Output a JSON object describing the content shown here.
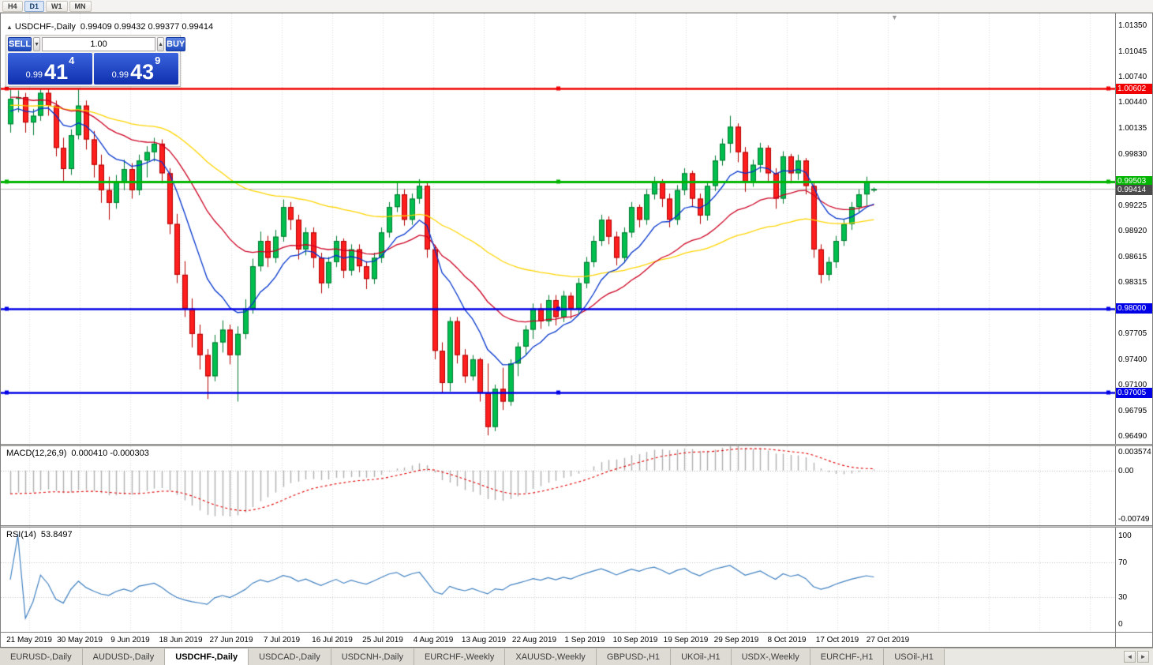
{
  "toolbar": {
    "timeframes": [
      "H4",
      "D1",
      "W1",
      "MN"
    ],
    "active": "D1"
  },
  "chart": {
    "title": "USDCHF-,Daily",
    "ohlc_text": "0.99409 0.99432 0.99377 0.99414"
  },
  "icons": {
    "panel_toggle": "▲",
    "shift_marker": "▼",
    "volume_down": "▼",
    "volume_up": "▲",
    "tab_scroll_left": "◄",
    "tab_scroll_right": "►"
  },
  "one_click": {
    "sell_label": "SELL",
    "buy_label": "BUY",
    "volume": "1.00",
    "sell_price": {
      "prefix": "0.99",
      "big": "41",
      "sup": "4"
    },
    "buy_price": {
      "prefix": "0.99",
      "big": "43",
      "sup": "9"
    }
  },
  "chart_data": {
    "type": "candlestick",
    "symbol": "USDCHF",
    "period": "Daily",
    "ylim": [
      0.964,
      1.0149
    ],
    "grid": true,
    "colors": {
      "up": "#00bf4e",
      "down": "#ff1e1e",
      "up_border": "#007a30",
      "down_border": "#b00000"
    },
    "price_scale_ticks": [
      "1.01350",
      "1.01045",
      "1.00740",
      "1.00440",
      "1.00135",
      "0.99830",
      "0.99525",
      "0.99225",
      "0.98920",
      "0.98615",
      "0.98315",
      "0.98010",
      "0.97705",
      "0.97400",
      "0.97100",
      "0.96795",
      "0.96490"
    ],
    "current_price": {
      "value": 0.99414,
      "label": "0.99414",
      "line_color": "#b4b4b4",
      "tag_bg": "#4a4a4a"
    },
    "hlines": [
      {
        "price": 1.00602,
        "label": "1.00602",
        "color": "#f00000",
        "width": 2.5,
        "handles": true
      },
      {
        "price": 0.99503,
        "label": "0.99503",
        "color": "#00b400",
        "width": 3,
        "handles": true
      },
      {
        "price": 0.98,
        "label": "0.98000",
        "color": "#0000e6",
        "width": 2.5,
        "handles": true
      },
      {
        "price": 0.97005,
        "label": "0.97005",
        "color": "#0000e6",
        "width": 2.5,
        "handles": true
      }
    ],
    "moving_averages": [
      {
        "name": "MA-slow-yellow",
        "period": 60,
        "seed": 1.004,
        "color": "#ffd400"
      },
      {
        "name": "MA-mid-red",
        "period": 25,
        "seed": 1.005,
        "color": "#cc0022"
      },
      {
        "name": "MA-fast-blue",
        "period": 10,
        "seed": 1.003,
        "color": "#0033cc"
      }
    ],
    "dates": [
      "21 May 2019",
      "30 May 2019",
      "9 Jun 2019",
      "18 Jun 2019",
      "27 Jun 2019",
      "7 Jul 2019",
      "16 Jul 2019",
      "25 Jul 2019",
      "4 Aug 2019",
      "13 Aug 2019",
      "22 Aug 2019",
      "1 Sep 2019",
      "10 Sep 2019",
      "19 Sep 2019",
      "29 Sep 2019",
      "8 Oct 2019",
      "17 Oct 2019",
      "27 Oct 2019"
    ],
    "candles": [
      [
        1.0018,
        1.006,
        1.0008,
        1.0048
      ],
      [
        1.0048,
        1.0058,
        1.0032,
        1.005
      ],
      [
        1.005,
        1.0055,
        1.0008,
        1.002
      ],
      [
        1.002,
        1.0036,
        1.0005,
        1.0028
      ],
      [
        1.0028,
        1.006,
        1.0022,
        1.0055
      ],
      [
        1.0055,
        1.006,
        1.0028,
        1.004
      ],
      [
        1.004,
        1.0046,
        0.998,
        0.999
      ],
      [
        0.999,
        1.0002,
        0.995,
        0.9965
      ],
      [
        0.9965,
        1.0012,
        0.9958,
        1.0005
      ],
      [
        1.0005,
        1.006,
        1.0,
        1.004
      ],
      [
        1.004,
        1.0046,
        0.9988,
        1.0
      ],
      [
        1.0,
        1.001,
        0.9955,
        0.997
      ],
      [
        0.997,
        0.9982,
        0.9925,
        0.994
      ],
      [
        0.994,
        0.9956,
        0.9905,
        0.9925
      ],
      [
        0.9925,
        0.9958,
        0.9918,
        0.995
      ],
      [
        0.995,
        0.9976,
        0.994,
        0.9965
      ],
      [
        0.9965,
        0.9972,
        0.993,
        0.994
      ],
      [
        0.994,
        0.9982,
        0.9934,
        0.9975
      ],
      [
        0.9975,
        0.9992,
        0.9955,
        0.9985
      ],
      [
        0.9985,
        1.0002,
        0.9974,
        0.9995
      ],
      [
        0.9995,
        1.0,
        0.9948,
        0.996
      ],
      [
        0.996,
        0.9966,
        0.9888,
        0.99
      ],
      [
        0.99,
        0.9912,
        0.983,
        0.984
      ],
      [
        0.984,
        0.9856,
        0.979,
        0.98
      ],
      [
        0.98,
        0.9812,
        0.9754,
        0.977
      ],
      [
        0.977,
        0.9781,
        0.9728,
        0.9745
      ],
      [
        0.9745,
        0.9752,
        0.9693,
        0.972
      ],
      [
        0.972,
        0.9769,
        0.9714,
        0.976
      ],
      [
        0.976,
        0.9786,
        0.9748,
        0.9775
      ],
      [
        0.9775,
        0.9781,
        0.9734,
        0.9745
      ],
      [
        0.9745,
        0.9779,
        0.969,
        0.977
      ],
      [
        0.977,
        0.9811,
        0.9764,
        0.98
      ],
      [
        0.98,
        0.9859,
        0.9794,
        0.985
      ],
      [
        0.985,
        0.9891,
        0.9844,
        0.988
      ],
      [
        0.988,
        0.9886,
        0.9849,
        0.986
      ],
      [
        0.986,
        0.9893,
        0.9854,
        0.9885
      ],
      [
        0.9885,
        0.9929,
        0.9879,
        0.992
      ],
      [
        0.992,
        0.9926,
        0.9893,
        0.9905
      ],
      [
        0.9905,
        0.9911,
        0.9858,
        0.987
      ],
      [
        0.987,
        0.9896,
        0.9863,
        0.989
      ],
      [
        0.989,
        0.9896,
        0.9848,
        0.986
      ],
      [
        0.986,
        0.9866,
        0.9818,
        0.983
      ],
      [
        0.983,
        0.9861,
        0.9824,
        0.9855
      ],
      [
        0.9855,
        0.9886,
        0.9849,
        0.988
      ],
      [
        0.988,
        0.9883,
        0.9836,
        0.9845
      ],
      [
        0.9845,
        0.9876,
        0.9839,
        0.987
      ],
      [
        0.987,
        0.9876,
        0.9843,
        0.985
      ],
      [
        0.985,
        0.9856,
        0.9823,
        0.9835
      ],
      [
        0.9835,
        0.9866,
        0.9829,
        0.986
      ],
      [
        0.986,
        0.9896,
        0.9854,
        0.989
      ],
      [
        0.989,
        0.9926,
        0.9884,
        0.992
      ],
      [
        0.992,
        0.995,
        0.9914,
        0.9935
      ],
      [
        0.9935,
        0.9941,
        0.9898,
        0.9905
      ],
      [
        0.9905,
        0.9936,
        0.9899,
        0.993
      ],
      [
        0.993,
        0.9953,
        0.9924,
        0.9945
      ],
      [
        0.9945,
        0.9949,
        0.986,
        0.987
      ],
      [
        0.987,
        0.9875,
        0.974,
        0.975
      ],
      [
        0.975,
        0.976,
        0.97,
        0.9712
      ],
      [
        0.9712,
        0.979,
        0.9702,
        0.9785
      ],
      [
        0.9785,
        0.979,
        0.9735,
        0.9745
      ],
      [
        0.9745,
        0.9752,
        0.9712,
        0.972
      ],
      [
        0.972,
        0.9745,
        0.9715,
        0.974
      ],
      [
        0.974,
        0.9742,
        0.969,
        0.97
      ],
      [
        0.97,
        0.9735,
        0.965,
        0.966
      ],
      [
        0.966,
        0.971,
        0.9655,
        0.9705
      ],
      [
        0.9705,
        0.973,
        0.968,
        0.969
      ],
      [
        0.969,
        0.974,
        0.9685,
        0.9735
      ],
      [
        0.9735,
        0.976,
        0.972,
        0.9755
      ],
      [
        0.9755,
        0.978,
        0.9745,
        0.9775
      ],
      [
        0.9775,
        0.9806,
        0.9764,
        0.98
      ],
      [
        0.98,
        0.9806,
        0.9776,
        0.9785
      ],
      [
        0.9785,
        0.9816,
        0.9779,
        0.981
      ],
      [
        0.981,
        0.9816,
        0.978,
        0.979
      ],
      [
        0.979,
        0.9821,
        0.9784,
        0.9815
      ],
      [
        0.9815,
        0.9819,
        0.9788,
        0.98
      ],
      [
        0.98,
        0.9836,
        0.9794,
        0.983
      ],
      [
        0.983,
        0.9861,
        0.9824,
        0.9855
      ],
      [
        0.9855,
        0.9886,
        0.9849,
        0.988
      ],
      [
        0.988,
        0.9911,
        0.9874,
        0.9905
      ],
      [
        0.9905,
        0.9909,
        0.9876,
        0.9885
      ],
      [
        0.9885,
        0.9891,
        0.9851,
        0.986
      ],
      [
        0.986,
        0.9896,
        0.9854,
        0.989
      ],
      [
        0.989,
        0.9926,
        0.9884,
        0.992
      ],
      [
        0.992,
        0.9923,
        0.9896,
        0.9905
      ],
      [
        0.9905,
        0.9941,
        0.9899,
        0.9935
      ],
      [
        0.9935,
        0.9956,
        0.9929,
        0.995
      ],
      [
        0.995,
        0.9953,
        0.992,
        0.993
      ],
      [
        0.993,
        0.9936,
        0.9896,
        0.9905
      ],
      [
        0.9905,
        0.9946,
        0.9899,
        0.994
      ],
      [
        0.994,
        0.9966,
        0.9934,
        0.996
      ],
      [
        0.996,
        0.9963,
        0.992,
        0.993
      ],
      [
        0.993,
        0.9936,
        0.99,
        0.991
      ],
      [
        0.991,
        0.9951,
        0.9904,
        0.9945
      ],
      [
        0.9945,
        0.9981,
        0.9939,
        0.9975
      ],
      [
        0.9975,
        1.0001,
        0.9969,
        0.9995
      ],
      [
        0.9995,
        1.0028,
        0.9984,
        1.0015
      ],
      [
        1.0015,
        1.0019,
        0.9973,
        0.9985
      ],
      [
        0.9985,
        0.9991,
        0.9938,
        0.995
      ],
      [
        0.995,
        0.9976,
        0.9944,
        0.997
      ],
      [
        0.997,
        0.9996,
        0.9961,
        0.999
      ],
      [
        0.999,
        0.9993,
        0.9951,
        0.996
      ],
      [
        0.996,
        0.9966,
        0.9918,
        0.993
      ],
      [
        0.993,
        0.9986,
        0.9924,
        0.998
      ],
      [
        0.998,
        0.9983,
        0.9948,
        0.996
      ],
      [
        0.996,
        0.9982,
        0.9952,
        0.9975
      ],
      [
        0.9975,
        0.9978,
        0.9935,
        0.9945
      ],
      [
        0.9945,
        0.995,
        0.986,
        0.987
      ],
      [
        0.987,
        0.9876,
        0.983,
        0.984
      ],
      [
        0.984,
        0.9861,
        0.9833,
        0.9855
      ],
      [
        0.9855,
        0.9886,
        0.9848,
        0.988
      ],
      [
        0.988,
        0.9906,
        0.9874,
        0.99
      ],
      [
        0.99,
        0.9926,
        0.9893,
        0.992
      ],
      [
        0.992,
        0.9941,
        0.9914,
        0.9935
      ],
      [
        0.9935,
        0.9956,
        0.9922,
        0.995
      ],
      [
        0.99409,
        0.99432,
        0.99377,
        0.99414
      ]
    ],
    "macd": {
      "label": "MACD(12,26,9)",
      "value_text": "0.000410 -0.000303",
      "fast": 12,
      "slow": 26,
      "signal": 9,
      "seed_fast": 1.0063,
      "seed_slow": 1.0103,
      "ylim": [
        -0.009,
        0.004
      ],
      "scale_labels": [
        "0.003574",
        "0.00",
        "-0.00749"
      ],
      "hist_color": "#b0b0b0",
      "signal_color": "#e00000"
    },
    "rsi": {
      "label": "RSI(14)",
      "value_text": "53.8497",
      "period": 14,
      "levels": [
        70,
        30
      ],
      "scale_labels": [
        "100",
        "70",
        "30",
        "0"
      ],
      "line_color": "#4080c0",
      "level_color": "#c0c0c0"
    }
  },
  "tabs": {
    "items": [
      "EURUSD-,Daily",
      "AUDUSD-,Daily",
      "USDCHF-,Daily",
      "USDCAD-,Daily",
      "USDCNH-,Daily",
      "EURCHF-,Weekly",
      "XAUUSD-,Weekly",
      "GBPUSD-,H1",
      "UKOil-,H1",
      "USDX-,Weekly",
      "EURCHF-,H1",
      "USOil-,H1"
    ],
    "active_index": 2
  }
}
